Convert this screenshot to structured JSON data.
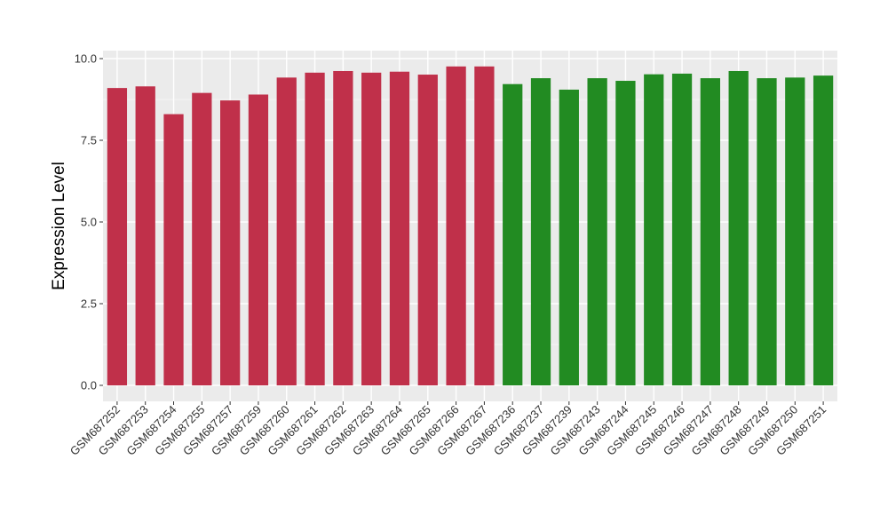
{
  "chart_data": {
    "type": "bar",
    "ylabel": "Expression Level",
    "xlabel": "",
    "ylim": [
      0,
      10.5
    ],
    "yticks": [
      0.0,
      2.5,
      5.0,
      7.5,
      10.0
    ],
    "ytick_labels": [
      "0.0",
      "2.5",
      "5.0",
      "7.5",
      "10.0"
    ],
    "grid": true,
    "panel_background": "#EBEBEB",
    "categories": [
      "GSM687252",
      "GSM687253",
      "GSM687254",
      "GSM687255",
      "GSM687257",
      "GSM687259",
      "GSM687260",
      "GSM687261",
      "GSM687262",
      "GSM687263",
      "GSM687264",
      "GSM687265",
      "GSM687266",
      "GSM687267",
      "GSM687236",
      "GSM687237",
      "GSM687239",
      "GSM687243",
      "GSM687244",
      "GSM687245",
      "GSM687246",
      "GSM687247",
      "GSM687248",
      "GSM687249",
      "GSM687250",
      "GSM687251"
    ],
    "values": [
      9.1,
      9.15,
      8.3,
      8.95,
      8.72,
      8.9,
      9.42,
      9.57,
      9.62,
      9.57,
      9.6,
      9.51,
      9.76,
      9.76,
      9.22,
      9.4,
      9.05,
      9.4,
      9.32,
      9.52,
      9.54,
      9.4,
      9.62,
      9.4,
      9.42,
      9.48
    ],
    "group_colors": [
      "#C0304A",
      "#C0304A",
      "#C0304A",
      "#C0304A",
      "#C0304A",
      "#C0304A",
      "#C0304A",
      "#C0304A",
      "#C0304A",
      "#C0304A",
      "#C0304A",
      "#C0304A",
      "#C0304A",
      "#C0304A",
      "#228B22",
      "#228B22",
      "#228B22",
      "#228B22",
      "#228B22",
      "#228B22",
      "#228B22",
      "#228B22",
      "#228B22",
      "#228B22",
      "#228B22",
      "#228B22"
    ]
  }
}
